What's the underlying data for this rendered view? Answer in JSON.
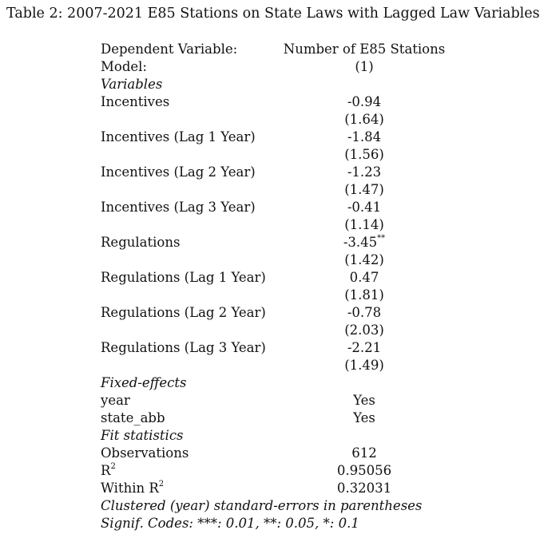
{
  "caption": "Table 2: 2007-2021 E85 Stations on State Laws with Lagged Law Variables",
  "header": {
    "dep_label": "Dependent Variable:",
    "dep_value": "Number of E85 Stations",
    "model_label": "Model:",
    "model_value": "(1)"
  },
  "sections": {
    "variables": "Variables",
    "fixed_effects": "Fixed-effects",
    "fit_statistics": "Fit statistics"
  },
  "variables": [
    {
      "name": "Incentives",
      "coef": "-0.94",
      "se": "(1.64)",
      "stars": ""
    },
    {
      "name": "Incentives (Lag 1 Year)",
      "coef": "-1.84",
      "se": "(1.56)",
      "stars": ""
    },
    {
      "name": "Incentives (Lag 2 Year)",
      "coef": "-1.23",
      "se": "(1.47)",
      "stars": ""
    },
    {
      "name": "Incentives (Lag 3 Year)",
      "coef": "-0.41",
      "se": "(1.14)",
      "stars": ""
    },
    {
      "name": "Regulations",
      "coef": "-3.45",
      "se": "(1.42)",
      "stars": "**"
    },
    {
      "name": "Regulations (Lag 1 Year)",
      "coef": "0.47",
      "se": "(1.81)",
      "stars": ""
    },
    {
      "name": "Regulations (Lag 2 Year)",
      "coef": "-0.78",
      "se": "(2.03)",
      "stars": ""
    },
    {
      "name": "Regulations (Lag 3 Year)",
      "coef": "-2.21",
      "se": "(1.49)",
      "stars": ""
    }
  ],
  "fixed_effects": [
    {
      "name": "year",
      "value": "Yes"
    },
    {
      "name": "state_abb",
      "value": "Yes"
    }
  ],
  "fit": {
    "obs_label": "Observations",
    "obs_value": "612",
    "r2_label": "R",
    "r2_sup": "2",
    "r2_value": "0.95056",
    "wr2_label": "Within R",
    "wr2_sup": "2",
    "wr2_value": "0.32031"
  },
  "notes": {
    "se_note": "Clustered (year) standard-errors in parentheses",
    "signif": "Signif. Codes: ***: 0.01, **: 0.05, *: 0.1"
  }
}
